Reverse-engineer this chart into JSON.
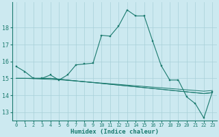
{
  "xlabel": "Humidex (Indice chaleur)",
  "bg_color": "#cce9f0",
  "grid_color": "#a8d0d8",
  "line_color": "#1a7a6e",
  "x": [
    0,
    1,
    2,
    3,
    4,
    5,
    6,
    7,
    8,
    9,
    10,
    11,
    12,
    13,
    14,
    15,
    16,
    17,
    18,
    19,
    20,
    21,
    22,
    23
  ],
  "line1": [
    15.7,
    15.4,
    15.0,
    15.0,
    15.2,
    14.9,
    15.2,
    15.8,
    15.85,
    15.9,
    17.55,
    17.5,
    18.1,
    19.05,
    18.7,
    18.7,
    17.2,
    15.75,
    14.9,
    14.9,
    13.9,
    13.5,
    12.65,
    14.2
  ],
  "line2": [
    15.0,
    15.0,
    15.0,
    15.0,
    15.0,
    14.95,
    14.9,
    14.85,
    14.8,
    14.75,
    14.7,
    14.65,
    14.6,
    14.55,
    14.5,
    14.45,
    14.4,
    14.35,
    14.3,
    14.25,
    14.2,
    14.15,
    14.1,
    14.15
  ],
  "line3": [
    15.0,
    15.0,
    15.0,
    15.0,
    15.0,
    14.95,
    14.9,
    14.85,
    14.8,
    14.75,
    14.7,
    14.65,
    14.6,
    14.55,
    14.5,
    14.45,
    14.4,
    14.35,
    14.3,
    14.25,
    14.2,
    14.15,
    14.1,
    14.15
  ],
  "line4": [
    15.0,
    15.0,
    14.98,
    14.96,
    14.94,
    14.92,
    14.88,
    14.84,
    14.8,
    14.76,
    14.72,
    14.68,
    14.64,
    14.6,
    14.56,
    14.52,
    14.48,
    14.44,
    14.4,
    14.36,
    14.32,
    14.28,
    14.24,
    14.28
  ],
  "ylim": [
    12.5,
    19.5
  ],
  "yticks": [
    13,
    14,
    15,
    16,
    17,
    18
  ],
  "xticks": [
    0,
    1,
    2,
    3,
    4,
    5,
    6,
    7,
    8,
    9,
    10,
    11,
    12,
    13,
    14,
    15,
    16,
    17,
    18,
    19,
    20,
    21,
    22,
    23
  ]
}
